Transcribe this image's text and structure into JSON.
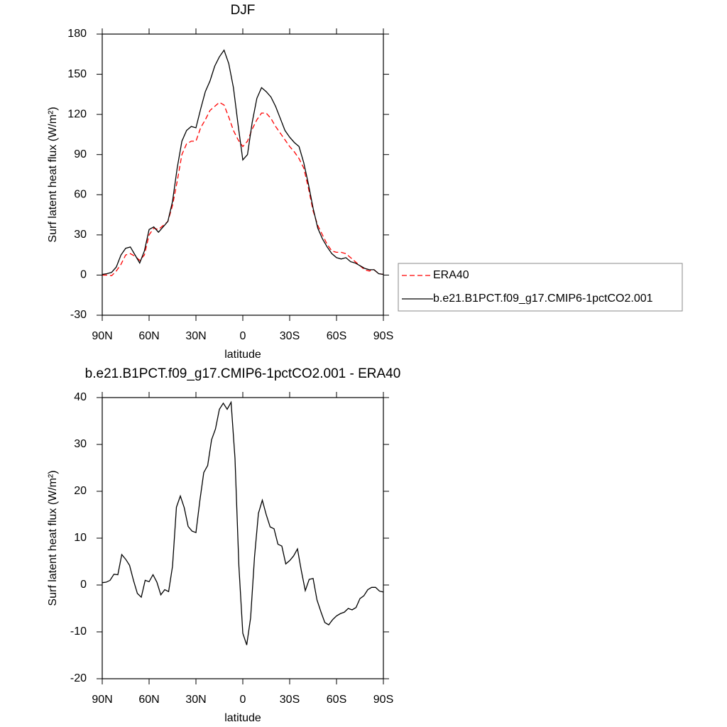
{
  "chart_data": [
    {
      "type": "line",
      "title": "DJF",
      "xlabel": "latitude",
      "ylabel": "Surf latent heat flux (W/m²)",
      "x": [
        90,
        87,
        84,
        81,
        78,
        75,
        72,
        69,
        66,
        63,
        60,
        57,
        54,
        51,
        48,
        45,
        42,
        39,
        36,
        33,
        30,
        27,
        24,
        21,
        18,
        15,
        12,
        9,
        6,
        3,
        0,
        -3,
        -6,
        -9,
        -12,
        -15,
        -18,
        -21,
        -24,
        -27,
        -30,
        -33,
        -36,
        -39,
        -42,
        -45,
        -48,
        -51,
        -54,
        -57,
        -60,
        -63,
        -66,
        -69,
        -72,
        -75,
        -78,
        -81,
        -84,
        -87,
        -90
      ],
      "xlim": [
        90,
        -90
      ],
      "xticks": [
        {
          "value": 90,
          "label": "90N"
        },
        {
          "value": 60,
          "label": "60N"
        },
        {
          "value": 30,
          "label": "30N"
        },
        0,
        {
          "value": -30,
          "label": "30S"
        },
        {
          "value": -60,
          "label": "60S"
        },
        {
          "value": -90,
          "label": "90S"
        }
      ],
      "ylim": [
        -30,
        180
      ],
      "yticks": [
        -30,
        0,
        30,
        60,
        90,
        120,
        150,
        180
      ],
      "legend": "right",
      "series": [
        {
          "name": "ERA40",
          "color": "#ff0000",
          "style": "dashed",
          "values": [
            0,
            0,
            -0.5,
            3,
            8,
            15,
            16,
            14,
            11,
            15,
            30,
            35,
            34,
            37,
            40,
            52,
            70,
            90,
            98,
            100,
            100,
            110,
            116,
            123,
            126,
            129,
            127,
            118,
            108,
            101,
            96,
            100,
            109,
            116,
            121,
            121,
            117,
            111,
            106,
            101,
            96,
            92,
            87,
            80,
            65,
            48,
            37,
            30,
            23,
            18,
            17,
            17,
            16,
            13,
            10,
            7,
            4,
            3,
            4,
            1,
            0.5
          ]
        },
        {
          "name": "b.e21.B1PCT.f09_g17.CMIP6-1pctCO2.001",
          "color": "#000000",
          "style": "solid",
          "values": [
            0.5,
            1,
            2,
            6,
            15,
            20,
            21,
            15,
            9,
            18,
            34,
            36,
            32,
            36,
            40,
            55,
            80,
            100,
            108,
            111,
            110,
            124,
            137,
            145,
            156,
            163,
            168,
            158,
            140,
            112,
            86,
            90,
            114,
            132,
            140,
            137,
            133,
            126,
            117,
            108,
            103,
            99,
            96,
            84,
            68,
            50,
            35,
            27,
            21,
            16,
            13,
            12,
            13,
            10,
            9,
            7,
            5,
            4,
            4,
            1,
            0.5
          ]
        }
      ]
    },
    {
      "type": "line",
      "title": "b.e21.B1PCT.f09_g17.CMIP6-1pctCO2.001 - ERA40",
      "xlabel": "latitude",
      "ylabel": "Surf latent heat flux (W/m²)",
      "x": [
        90,
        87.5,
        85,
        82.5,
        80,
        77.5,
        75,
        72.5,
        70,
        67.5,
        65,
        62.5,
        60,
        57.5,
        55,
        52.5,
        50,
        47.5,
        45,
        42.5,
        40,
        37.5,
        35,
        32.5,
        30,
        27.5,
        25,
        22.5,
        20,
        17.5,
        15,
        12.5,
        10,
        7.5,
        5,
        2.5,
        0,
        -2.5,
        -5,
        -7.5,
        -10,
        -12.5,
        -15,
        -17.5,
        -20,
        -22.5,
        -25,
        -27.5,
        -30,
        -32.5,
        -35,
        -37.5,
        -40,
        -42.5,
        -45,
        -47.5,
        -50,
        -52.5,
        -55,
        -57.5,
        -60,
        -62.5,
        -65,
        -67.5,
        -70,
        -72.5,
        -75,
        -77.5,
        -80,
        -82.5,
        -85,
        -87.5,
        -90
      ],
      "xlim": [
        90,
        -90
      ],
      "xticks": [
        {
          "value": 90,
          "label": "90N"
        },
        {
          "value": 60,
          "label": "60N"
        },
        {
          "value": 30,
          "label": "30N"
        },
        0,
        {
          "value": -30,
          "label": "30S"
        },
        {
          "value": -60,
          "label": "60S"
        },
        {
          "value": -90,
          "label": "90S"
        }
      ],
      "ylim": [
        -20,
        40
      ],
      "yticks": [
        -20,
        -10,
        0,
        10,
        20,
        30,
        40
      ],
      "series": [
        {
          "color": "#000000",
          "style": "solid",
          "values": [
            0.5,
            0.6,
            1,
            2.3,
            2.2,
            6.5,
            5.5,
            4.2,
            1,
            -1.8,
            -2.6,
            1,
            0.7,
            2.2,
            0.6,
            -2.1,
            -1,
            -1.4,
            4,
            16.6,
            19,
            16.5,
            12.5,
            11.5,
            11.2,
            18,
            24,
            25.5,
            31,
            33.3,
            37.5,
            38.8,
            37.5,
            39,
            27,
            4,
            -10.3,
            -12.8,
            -7,
            6,
            15.3,
            18.1,
            15,
            12.4,
            12,
            8.7,
            8.3,
            4.5,
            5.2,
            6.2,
            7.7,
            3,
            -1.2,
            1.2,
            1.4,
            -3.2,
            -5.7,
            -8,
            -8.5,
            -7.4,
            -6.6,
            -6.1,
            -5.8,
            -5,
            -5.3,
            -4.8,
            -2.9,
            -2.3,
            -1,
            -0.5,
            -0.5,
            -1.3,
            -1.5
          ]
        }
      ]
    }
  ]
}
